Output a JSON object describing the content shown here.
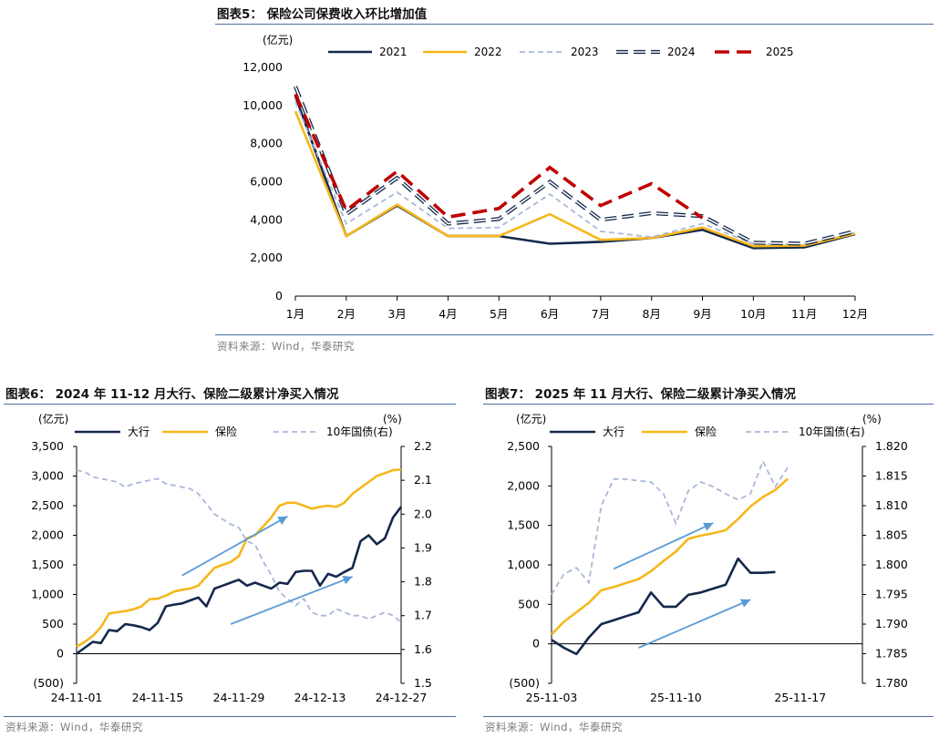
{
  "charts": {
    "c5": {
      "title": "图表5： 保险公司保费收入环比增加值",
      "source": "资料来源：Wind，华泰研究",
      "chart_data": {
        "type": "line",
        "unit_label": "(亿元)",
        "categories": [
          "1月",
          "2月",
          "3月",
          "4月",
          "5月",
          "6月",
          "7月",
          "8月",
          "9月",
          "10月",
          "11月",
          "12月"
        ],
        "ylim": [
          0,
          12000
        ],
        "yticks": [
          0,
          2000,
          4000,
          6000,
          8000,
          10000,
          12000
        ],
        "ytick_labels": [
          "0",
          "2,000",
          "4,000",
          "6,000",
          "8,000",
          "10,000",
          "12,000"
        ],
        "legend_position": "top",
        "series": [
          {
            "name": "2021",
            "values": [
              10500,
              3150,
              4750,
              3150,
              3150,
              2750,
              2850,
              3050,
              3480,
              2520,
              2560,
              3250
            ],
            "color": "#14284b",
            "style": "solid"
          },
          {
            "name": "2022",
            "values": [
              9700,
              3150,
              4800,
              3150,
              3150,
              4300,
              2950,
              3050,
              3600,
              2620,
              2650,
              3280
            ],
            "color": "#f5b81c",
            "style": "solid"
          },
          {
            "name": "2023",
            "values": [
              10200,
              3800,
              5450,
              3550,
              3600,
              5350,
              3400,
              3100,
              3800,
              2750,
              2720,
              3350
            ],
            "color": "#a9b8d8",
            "style": "dash"
          },
          {
            "name": "2024",
            "values": [
              11000,
              4300,
              6200,
              3800,
              4050,
              6000,
              4000,
              4350,
              4200,
              2800,
              2750,
              3400
            ],
            "color": "#14284b",
            "style": "outline-dash"
          },
          {
            "name": "2025",
            "values": [
              10600,
              4500,
              6550,
              4150,
              4600,
              6750,
              4750,
              5900,
              4100,
              null,
              null,
              null
            ],
            "color": "#c00000",
            "style": "bold-dash"
          }
        ]
      }
    },
    "c6": {
      "title": "图表6： 2024 年 11-12 月大行、保险二级累计净买入情况",
      "source": "资料来源：Wind，华泰研究",
      "chart_data": {
        "type": "line",
        "unit_left": "(亿元)",
        "unit_right": "(%)",
        "ylim_left": [
          -500,
          3500
        ],
        "yticks_left": [
          -500,
          0,
          500,
          1000,
          1500,
          2000,
          2500,
          3000,
          3500
        ],
        "ytick_labels_left": [
          "(500)",
          "0",
          "500",
          "1,000",
          "1,500",
          "2,000",
          "2,500",
          "3,000",
          "3,500"
        ],
        "ylim_right": [
          1.5,
          2.2
        ],
        "yticks_right": [
          1.5,
          1.6,
          1.7,
          1.8,
          1.9,
          2.0,
          2.1,
          2.2
        ],
        "ytick_labels_right": [
          "1.5",
          "1.6",
          "1.7",
          "1.8",
          "1.9",
          "2.0",
          "2.1",
          "2.2"
        ],
        "x_count": 41,
        "xtick_index": [
          0,
          10,
          20,
          30,
          40
        ],
        "xtick_labels": [
          "24-11-01",
          "24-11-15",
          "24-11-29",
          "24-12-13",
          "24-12-27"
        ],
        "legend_position": "top",
        "series": [
          {
            "name": "大行",
            "axis": "left",
            "color": "#14284b",
            "style": "solid",
            "values": [
              0,
              100,
              200,
              180,
              400,
              380,
              500,
              480,
              450,
              400,
              520,
              800,
              830,
              850,
              900,
              950,
              800,
              1100,
              1150,
              1200,
              1250,
              1150,
              1200,
              1150,
              1100,
              1200,
              1180,
              1380,
              1400,
              1400,
              1150,
              1350,
              1300,
              1380,
              1450,
              1900,
              2000,
              1850,
              1950,
              2300,
              2480
            ]
          },
          {
            "name": "保险",
            "axis": "left",
            "color": "#f5b81c",
            "style": "solid",
            "values": [
              120,
              200,
              300,
              450,
              680,
              700,
              720,
              750,
              800,
              920,
              930,
              980,
              1050,
              1080,
              1100,
              1150,
              1300,
              1450,
              1500,
              1550,
              1650,
              1950,
              2000,
              2150,
              2300,
              2500,
              2550,
              2550,
              2500,
              2450,
              2480,
              2500,
              2480,
              2550,
              2700,
              2800,
              2900,
              3000,
              3050,
              3100,
              3110
            ]
          },
          {
            "name": "10年国债(右)",
            "axis": "right",
            "color": "#a9b8d8",
            "style": "dash",
            "values": [
              2.13,
              2.125,
              2.11,
              2.105,
              2.1,
              2.095,
              2.08,
              2.09,
              2.095,
              2.1,
              2.105,
              2.09,
              2.085,
              2.08,
              2.075,
              2.06,
              2.03,
              2.0,
              1.985,
              1.97,
              1.96,
              1.92,
              1.91,
              1.86,
              1.82,
              1.77,
              1.75,
              1.73,
              1.75,
              1.71,
              1.7,
              1.7,
              1.72,
              1.71,
              1.7,
              1.7,
              1.69,
              1.7,
              1.71,
              1.7,
              1.68
            ]
          }
        ]
      }
    },
    "c7": {
      "title": "图表7： 2025 年 11 月大行、保险二级累计净买入情况",
      "source": "资料来源：Wind，华泰研究",
      "chart_data": {
        "type": "line",
        "unit_left": "(亿元)",
        "unit_right": "(%)",
        "ylim_left": [
          -500,
          2500
        ],
        "yticks_left": [
          -500,
          0,
          500,
          1000,
          1500,
          2000,
          2500
        ],
        "ytick_labels_left": [
          "(500)",
          "0",
          "500",
          "1,000",
          "1,500",
          "2,000",
          "2,500"
        ],
        "ylim_right": [
          1.78,
          1.82
        ],
        "yticks_right": [
          1.78,
          1.785,
          1.79,
          1.795,
          1.8,
          1.805,
          1.81,
          1.815,
          1.82
        ],
        "ytick_labels_right": [
          "1.780",
          "1.785",
          "1.790",
          "1.795",
          "1.800",
          "1.805",
          "1.810",
          "1.815",
          "1.820"
        ],
        "x_count": 26,
        "xtick_index": [
          0,
          10,
          20
        ],
        "xtick_labels": [
          "25-11-03",
          "25-11-10",
          "25-11-17"
        ],
        "legend_position": "top",
        "series": [
          {
            "name": "大行",
            "axis": "left",
            "color": "#14284b",
            "style": "solid",
            "values": [
              50,
              -50,
              -130,
              80,
              250,
              300,
              350,
              400,
              650,
              470,
              470,
              620,
              650,
              700,
              750,
              1080,
              900,
              900,
              910,
              null,
              null,
              null,
              null,
              null,
              null,
              null
            ]
          },
          {
            "name": "保险",
            "axis": "left",
            "color": "#f5b81c",
            "style": "solid",
            "values": [
              120,
              280,
              400,
              520,
              680,
              720,
              770,
              820,
              920,
              1050,
              1170,
              1330,
              1370,
              1400,
              1440,
              1580,
              1740,
              1860,
              1950,
              2090,
              null,
              null,
              null,
              null,
              null,
              null
            ]
          },
          {
            "name": "10年国债(右)",
            "axis": "right",
            "color": "#a9b8d8",
            "style": "dash",
            "values": [
              1.795,
              1.7985,
              1.7995,
              1.797,
              1.81,
              1.8145,
              1.8145,
              1.8142,
              1.814,
              1.812,
              1.807,
              1.8125,
              1.814,
              1.8132,
              1.812,
              1.811,
              1.812,
              1.8175,
              1.8132,
              1.8165,
              null,
              null,
              null,
              null,
              null,
              null
            ]
          }
        ]
      }
    }
  }
}
